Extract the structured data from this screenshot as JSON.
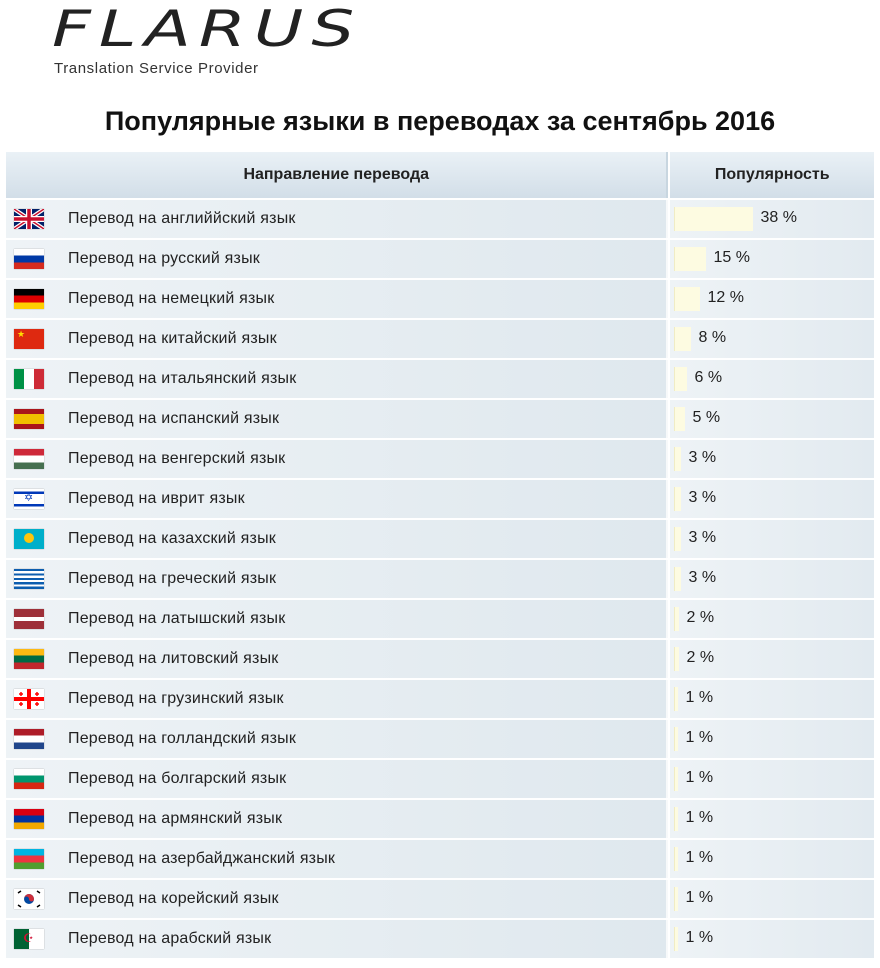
{
  "header": {
    "logo_text": "FLARUS",
    "tagline": "Translation Service Provider",
    "title": "Популярные языки в переводах за сентябрь 2016"
  },
  "table": {
    "col_direction": "Направление перевода",
    "col_popularity": "Популярность"
  },
  "chart_data": {
    "type": "bar",
    "title": "Популярные языки в переводах за сентябрь 2016",
    "xlabel": "Направление перевода",
    "ylabel": "Популярность",
    "unit": "%",
    "categories": [
      "Перевод на английйский язык",
      "Перевод на русский язык",
      "Перевод на немецкий язык",
      "Перевод на китайский язык",
      "Перевод на итальянский язык",
      "Перевод на испанский язык",
      "Перевод на венгерский язык",
      "Перевод на иврит язык",
      "Перевод на казахский язык",
      "Перевод на греческий язык",
      "Перевод на латышский язык",
      "Перевод на литовский язык",
      "Перевод на грузинский язык",
      "Перевод на голландский язык",
      "Перевод на болгарский язык",
      "Перевод на армянский язык",
      "Перевод на азербайджанский язык",
      "Перевод на корейский язык",
      "Перевод на арабский язык"
    ],
    "values": [
      38,
      15,
      12,
      8,
      6,
      5,
      3,
      3,
      3,
      3,
      2,
      2,
      1,
      1,
      1,
      1,
      1,
      1,
      1
    ],
    "labels": [
      "38 %",
      "15 %",
      "12 %",
      "8 %",
      "6 %",
      "5 %",
      "3 %",
      "3 %",
      "3 %",
      "3 %",
      "2 %",
      "2 %",
      "1 %",
      "1 %",
      "1 %",
      "1 %",
      "1 %",
      "1 %",
      "1 %"
    ],
    "flags": [
      "uk-flag-icon",
      "russia-flag-icon",
      "germany-flag-icon",
      "china-flag-icon",
      "italy-flag-icon",
      "spain-flag-icon",
      "hungary-flag-icon",
      "israel-flag-icon",
      "kazakhstan-flag-icon",
      "greece-flag-icon",
      "latvia-flag-icon",
      "lithuania-flag-icon",
      "georgia-flag-icon",
      "netherlands-flag-icon",
      "bulgaria-flag-icon",
      "armenia-flag-icon",
      "azerbaijan-flag-icon",
      "south-korea-flag-icon",
      "algeria-flag-icon"
    ],
    "colors": {
      "bar": "#fdfbe1",
      "row": "#e6edf2",
      "header": "#d9e4ec"
    }
  }
}
